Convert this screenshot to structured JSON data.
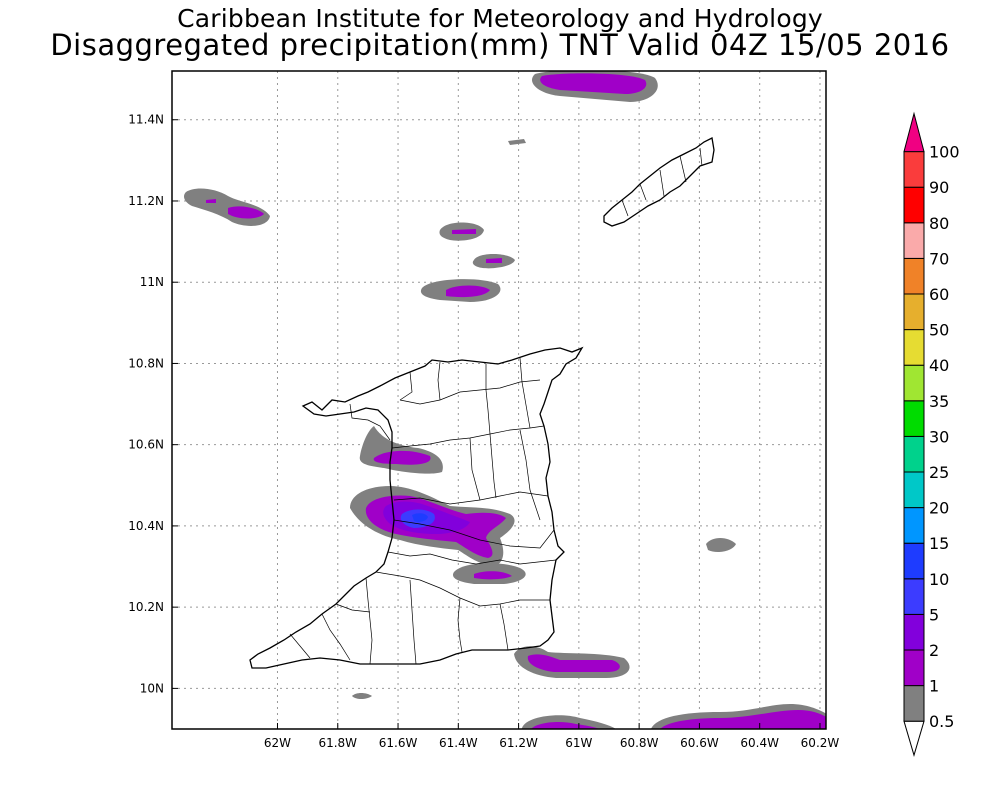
{
  "header": {
    "title_line1": "Caribbean Institute for Meteorology and Hydrology",
    "title_line2": "Disaggregated precipitation(mm) TNT Valid 04Z 15/05 2016"
  },
  "map": {
    "lon_range": [
      -62.35,
      -60.18
    ],
    "lat_range": [
      9.9,
      11.52
    ],
    "x_ticks": [
      {
        "value": -62.0,
        "label": "62W"
      },
      {
        "value": -61.8,
        "label": "61.8W"
      },
      {
        "value": -61.6,
        "label": "61.6W"
      },
      {
        "value": -61.4,
        "label": "61.4W"
      },
      {
        "value": -61.2,
        "label": "61.2W"
      },
      {
        "value": -61.0,
        "label": "61W"
      },
      {
        "value": -60.8,
        "label": "60.8W"
      },
      {
        "value": -60.6,
        "label": "60.6W"
      },
      {
        "value": -60.4,
        "label": "60.4W"
      },
      {
        "value": -60.2,
        "label": "60.2W"
      }
    ],
    "y_ticks": [
      {
        "value": 10.0,
        "label": "10N"
      },
      {
        "value": 10.2,
        "label": "10.2N"
      },
      {
        "value": 10.4,
        "label": "10.4N"
      },
      {
        "value": 10.6,
        "label": "10.6N"
      },
      {
        "value": 10.8,
        "label": "10.8N"
      },
      {
        "value": 11.0,
        "label": "11N"
      },
      {
        "value": 11.2,
        "label": "11.2N"
      },
      {
        "value": 11.4,
        "label": "11.4N"
      }
    ],
    "grid": "dotted"
  },
  "colorbar": {
    "levels": [
      "0.5",
      "1",
      "2",
      "5",
      "10",
      "15",
      "20",
      "25",
      "30",
      "35",
      "40",
      "50",
      "60",
      "70",
      "80",
      "90",
      "100"
    ],
    "colors": [
      "#808080",
      "#a000c8",
      "#8200dc",
      "#3c3cff",
      "#1e3cff",
      "#0096ff",
      "#00c8c8",
      "#00d28c",
      "#00dc00",
      "#a0e632",
      "#e6dc32",
      "#e6af2d",
      "#f08228",
      "#faaaaa",
      "#ff0000",
      "#fa3c3c",
      "#f00082"
    ]
  }
}
